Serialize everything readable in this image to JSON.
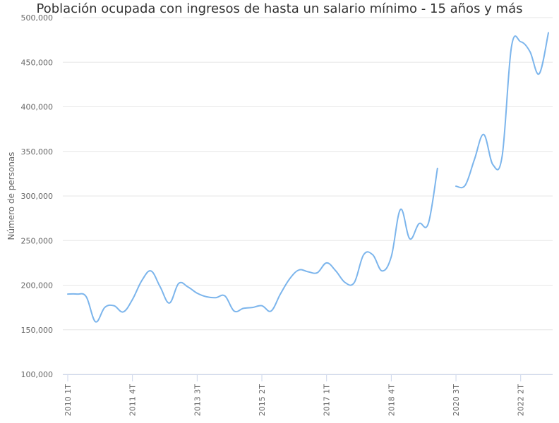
{
  "chart_data": {
    "type": "line",
    "title": "Población ocupada con ingresos de hasta un salario mínimo - 15 años y más",
    "ylabel": "Número de personas",
    "xlabel": "",
    "ylim": [
      100000,
      500000
    ],
    "y_ticks": [
      "100,000",
      "150,000",
      "200,000",
      "250,000",
      "300,000",
      "350,000",
      "400,000",
      "450,000",
      "500,000"
    ],
    "y_tick_values": [
      100000,
      150000,
      200000,
      250000,
      300000,
      350000,
      400000,
      450000,
      500000
    ],
    "x_tick_labels": [
      "2010 1T",
      "2011 4T",
      "2013 3T",
      "2015 2T",
      "2017 1T",
      "2018 4T",
      "2020 3T",
      "2022 2T"
    ],
    "x_tick_positions": [
      0,
      7,
      14,
      21,
      28,
      35,
      42,
      49
    ],
    "grid": true,
    "series": [
      {
        "color": "#7cb5ec",
        "x": [
          "2010 1T",
          "2010 2T",
          "2010 3T",
          "2010 4T",
          "2011 1T",
          "2011 2T",
          "2011 3T",
          "2011 4T",
          "2012 1T",
          "2012 2T",
          "2012 3T",
          "2012 4T",
          "2013 1T",
          "2013 2T",
          "2013 3T",
          "2013 4T",
          "2014 1T",
          "2014 2T",
          "2014 3T",
          "2014 4T",
          "2015 1T",
          "2015 2T",
          "2015 3T",
          "2015 4T",
          "2016 1T",
          "2016 2T",
          "2016 3T",
          "2016 4T",
          "2017 1T",
          "2017 2T",
          "2017 3T",
          "2017 4T",
          "2018 1T",
          "2018 2T",
          "2018 3T",
          "2018 4T",
          "2019 1T",
          "2019 2T",
          "2019 3T",
          "2019 4T",
          "2020 1T",
          "2020 2T",
          "2020 3T",
          "2020 4T",
          "2021 1T",
          "2021 2T",
          "2021 3T",
          "2021 4T",
          "2022 1T",
          "2022 2T",
          "2022 3T",
          "2022 4T",
          "2023 1T"
        ],
        "values": [
          190000,
          190000,
          187000,
          159000,
          175000,
          177000,
          170000,
          184000,
          205000,
          216000,
          198000,
          180000,
          202000,
          198000,
          191000,
          187000,
          186000,
          188000,
          171000,
          174000,
          175000,
          177000,
          171000,
          190000,
          207000,
          217000,
          215000,
          214000,
          225000,
          216000,
          203000,
          203000,
          234000,
          234000,
          216000,
          232000,
          285000,
          252000,
          269000,
          269000,
          331000,
          null,
          311000,
          312000,
          341000,
          369000,
          335000,
          345000,
          467000,
          473000,
          462000,
          437000,
          483000
        ]
      }
    ]
  }
}
